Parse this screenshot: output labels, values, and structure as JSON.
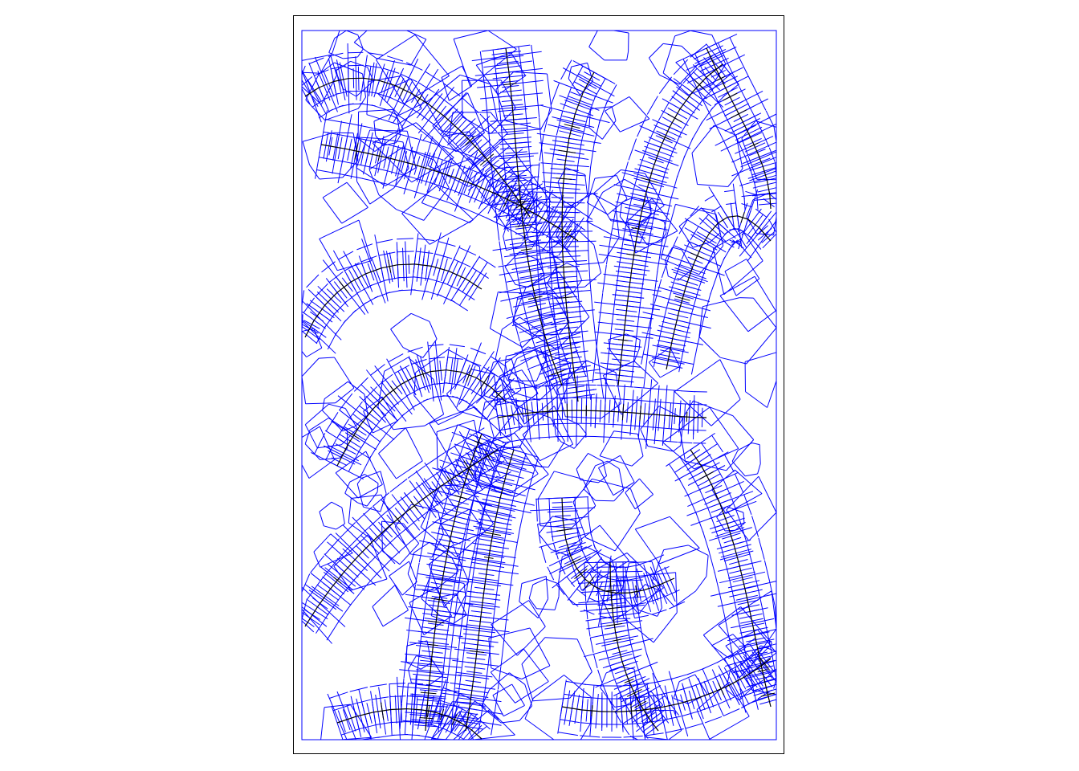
{
  "figure": {
    "kind": "voronoi-diagram-with-traced-skeleton",
    "colors": {
      "background": "#ffffff",
      "frame": "#000000",
      "voronoi_edges": "#0000ff",
      "skeleton_paths": "#000000"
    },
    "has_title": false,
    "has_axes": false,
    "has_legend": false
  }
}
